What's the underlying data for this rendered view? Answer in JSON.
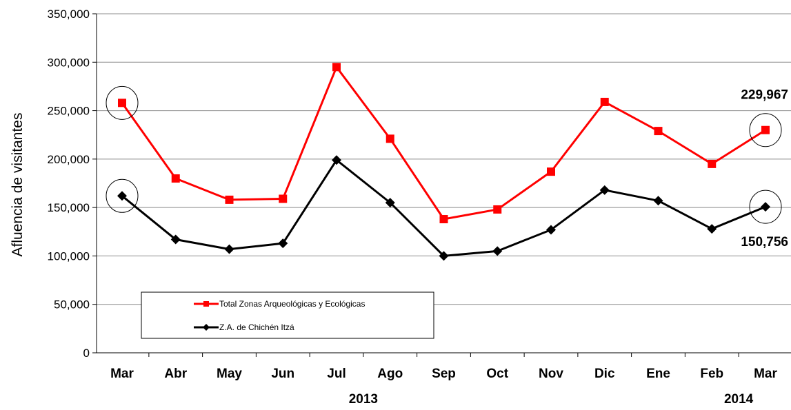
{
  "chart_data": {
    "type": "line",
    "categories": [
      "Mar",
      "Abr",
      "May",
      "Jun",
      "Jul",
      "Ago",
      "Sep",
      "Oct",
      "Nov",
      "Dic",
      "Ene",
      "Feb",
      "Mar"
    ],
    "ylabel": "Afluencia de visitantes",
    "ylim": [
      0,
      350000
    ],
    "y_ticks": [
      "0",
      "50,000",
      "100,000",
      "150,000",
      "200,000",
      "250,000",
      "300,000",
      "350,000"
    ],
    "year_labels": [
      "2013",
      "2014"
    ],
    "grid": "horizontal",
    "legend_position": "bottom-left inside plot",
    "series": [
      {
        "name": "Total Zonas Arqueológicas y Ecológicas",
        "color": "#ff0000",
        "marker": "square",
        "values": [
          258000,
          180000,
          158000,
          159000,
          295000,
          221000,
          138000,
          148000,
          187000,
          259000,
          229000,
          195000,
          229967
        ]
      },
      {
        "name": "Z.A. de Chichén Itzá",
        "color": "#000000",
        "marker": "diamond",
        "values": [
          162000,
          117000,
          107000,
          113000,
          199000,
          155000,
          100000,
          105000,
          127000,
          168000,
          157000,
          128000,
          150756
        ]
      }
    ],
    "annotations": [
      {
        "text": "229,967",
        "series": 0,
        "point": 12
      },
      {
        "text": "150,756",
        "series": 1,
        "point": 12
      }
    ],
    "circled_points": [
      {
        "series": 0,
        "point": 0
      },
      {
        "series": 1,
        "point": 0
      },
      {
        "series": 0,
        "point": 12
      },
      {
        "series": 1,
        "point": 12
      }
    ]
  }
}
